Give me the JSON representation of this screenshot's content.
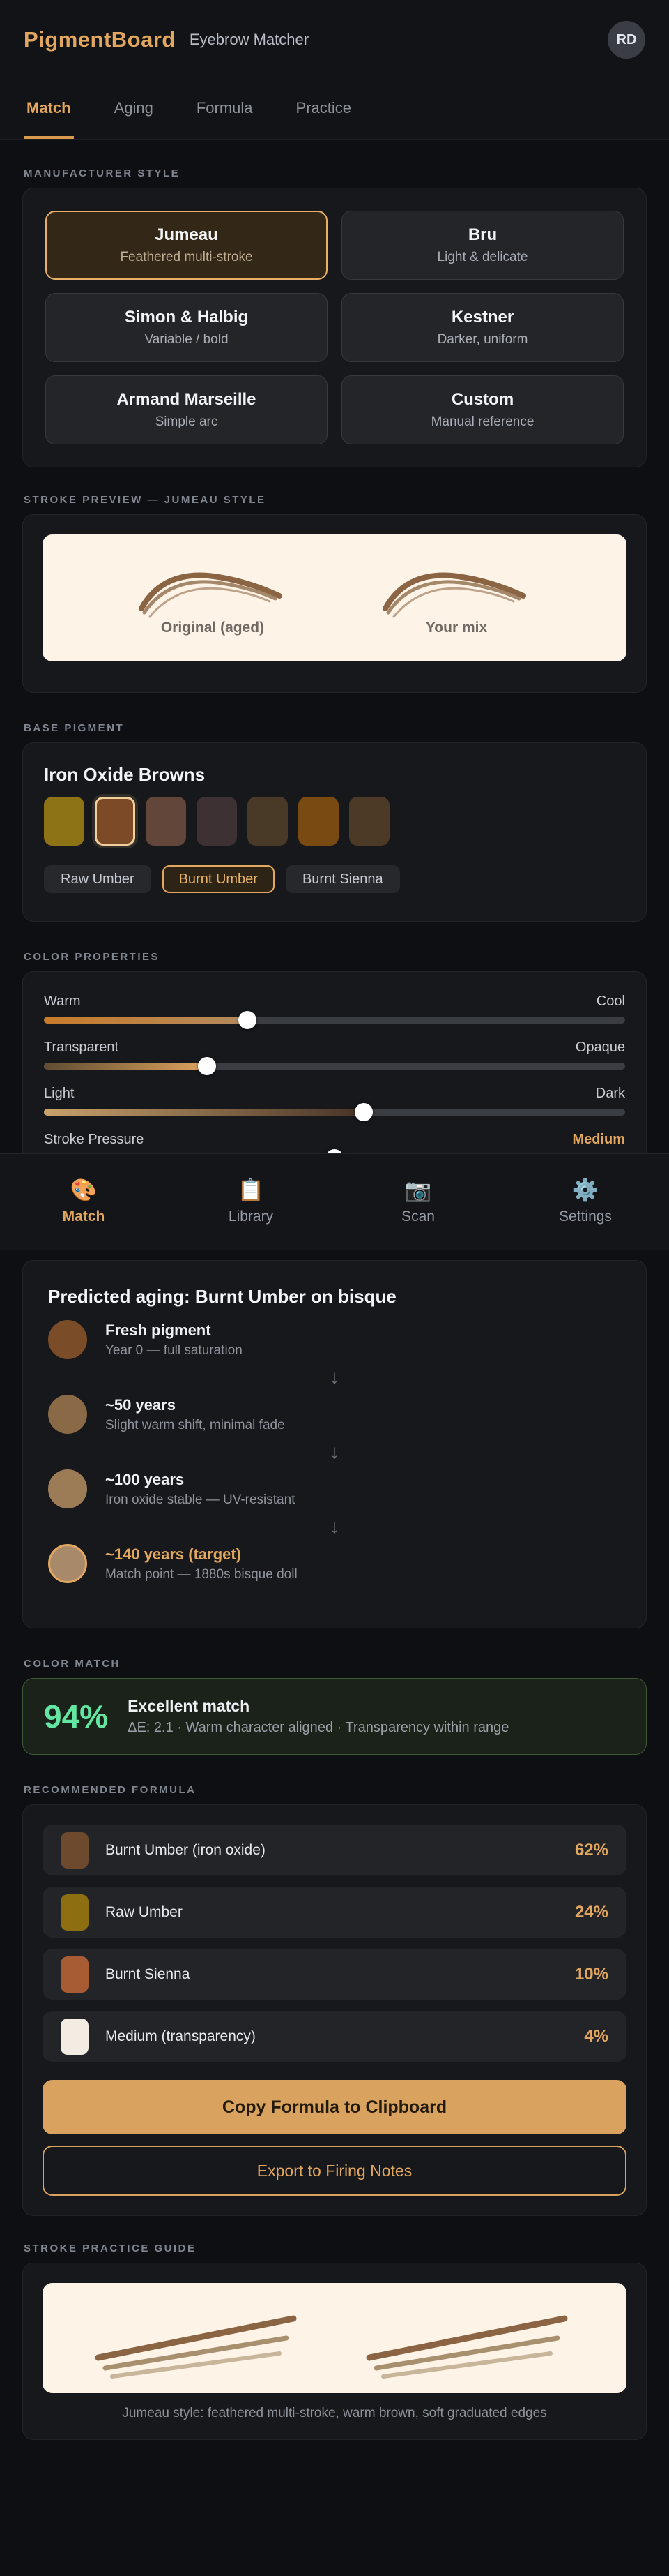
{
  "theme": {
    "accent": "#e2a75e",
    "page_bg": "#0e0f12",
    "card_bg": "#17181b",
    "match_green": "#63e6a2",
    "cream_panel": "#fdf3e7"
  },
  "header": {
    "app_name": "PigmentBoard",
    "subtitle": "Eyebrow Matcher",
    "avatar_initials": "RD"
  },
  "tabs": {
    "items": [
      {
        "label": "Match",
        "active": true
      },
      {
        "label": "Aging",
        "active": false
      },
      {
        "label": "Formula",
        "active": false
      },
      {
        "label": "Practice",
        "active": false
      }
    ]
  },
  "manufacturer_style": {
    "section_label": "MANUFACTURER STYLE",
    "options": [
      {
        "name": "Jumeau",
        "desc": "Feathered multi-stroke",
        "selected": true
      },
      {
        "name": "Bru",
        "desc": "Light & delicate",
        "selected": false
      },
      {
        "name": "Simon & Halbig",
        "desc": "Variable / bold",
        "selected": false
      },
      {
        "name": "Kestner",
        "desc": "Darker, uniform",
        "selected": false
      },
      {
        "name": "Armand Marseille",
        "desc": "Simple arc",
        "selected": false
      },
      {
        "name": "Custom",
        "desc": "Manual reference",
        "selected": false
      }
    ]
  },
  "stroke_preview": {
    "section_label": "STROKE PREVIEW — JUMEAU STYLE",
    "left_label": "Original (aged)",
    "right_label": "Your mix",
    "stroke_colors": [
      "#8a6443",
      "#a5876a",
      "#bda189"
    ]
  },
  "base_pigment": {
    "section_label": "BASE PIGMENT",
    "group_title": "Iron Oxide Browns",
    "swatches": [
      {
        "color": "#8e7316",
        "selected": false
      },
      {
        "color": "#7c4a26",
        "selected": true
      },
      {
        "color": "#624639",
        "selected": false
      },
      {
        "color": "#3e3134",
        "selected": false
      },
      {
        "color": "#493a28",
        "selected": false
      },
      {
        "color": "#7a4a13",
        "selected": false
      },
      {
        "color": "#4d3a26",
        "selected": false
      }
    ],
    "chips": [
      {
        "label": "Raw Umber",
        "selected": false
      },
      {
        "label": "Burnt Umber",
        "selected": true
      },
      {
        "label": "Burnt Sienna",
        "selected": false
      }
    ]
  },
  "color_properties": {
    "section_label": "COLOR PROPERTIES",
    "sliders": [
      {
        "left": "Warm",
        "right": "Cool",
        "pct": 35,
        "fill_from": "#c87b2a",
        "fill_to": "#b38a5e"
      },
      {
        "left": "Transparent",
        "right": "Opaque",
        "pct": 28,
        "fill_from": "#5f4c33",
        "fill_to": "#e0a45e"
      },
      {
        "left": "Light",
        "right": "Dark",
        "pct": 55,
        "fill_from": "#c9a26b",
        "fill_to": "#463227"
      },
      {
        "left": "Stroke Pressure",
        "right": "Medium",
        "is_value": true,
        "pct": 50,
        "fill_from": "#c9894a",
        "fill_to": "#9c6a38"
      }
    ]
  },
  "nav": {
    "items": [
      {
        "icon": "🎨",
        "label": "Match",
        "active": true
      },
      {
        "icon": "📋",
        "label": "Library",
        "active": false
      },
      {
        "icon": "📷",
        "label": "Scan",
        "active": false
      },
      {
        "icon": "⚙️",
        "label": "Settings",
        "active": false
      }
    ]
  },
  "aging": {
    "title": "Predicted aging: Burnt Umber on bisque",
    "arrow": "↓",
    "steps": [
      {
        "color": "#7a4c28",
        "title": "Fresh pigment",
        "subtitle": "Year 0 — full saturation",
        "target": false
      },
      {
        "color": "#8a6a46",
        "title": "~50 years",
        "subtitle": "Slight warm shift, minimal fade",
        "target": false
      },
      {
        "color": "#9c7c57",
        "title": "~100 years",
        "subtitle": "Iron oxide stable — UV-resistant",
        "target": false
      },
      {
        "color": "#a8896a",
        "title": "~140 years (target)",
        "subtitle": "Match point — 1880s bisque doll",
        "target": true
      }
    ]
  },
  "color_match": {
    "section_label": "COLOR MATCH",
    "percent": "94%",
    "title": "Excellent match",
    "details": "ΔE: 2.1 · Warm character aligned · Transparency within range"
  },
  "formula": {
    "section_label": "RECOMMENDED FORMULA",
    "components": [
      {
        "color": "#6d4a2e",
        "label": "Burnt Umber (iron oxide)",
        "pct": "62%"
      },
      {
        "color": "#8d6f12",
        "label": "Raw Umber",
        "pct": "24%"
      },
      {
        "color": "#a85c33",
        "label": "Burnt Sienna",
        "pct": "10%"
      },
      {
        "color": "#f2ece3",
        "label": "Medium (transparency)",
        "pct": "4%"
      }
    ],
    "copy_button": "Copy Formula to Clipboard",
    "export_button": "Export to Firing Notes"
  },
  "practice": {
    "section_label": "STROKE PRACTICE GUIDE",
    "caption": "Jumeau style: feathered multi-stroke, warm brown, soft graduated edges",
    "stroke_colors": [
      "#8a6443",
      "#a8906f",
      "#c9b59a"
    ]
  }
}
